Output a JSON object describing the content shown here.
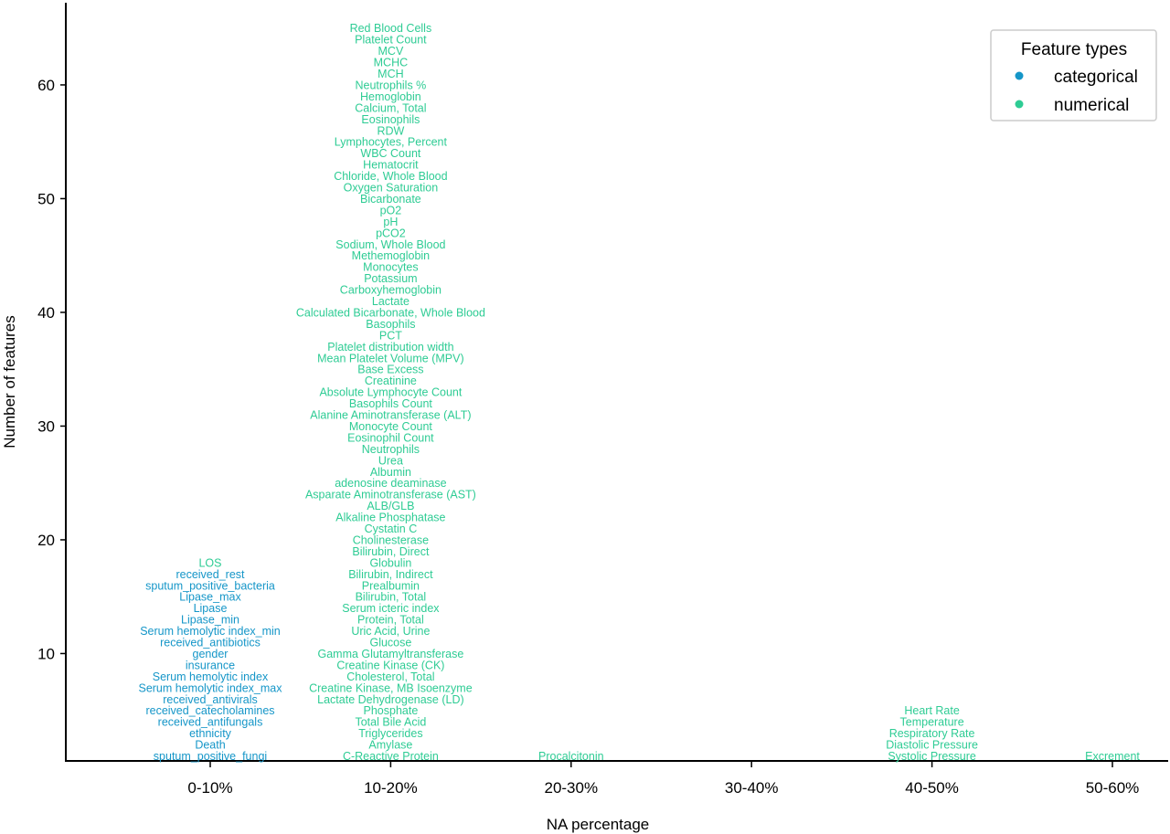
{
  "chart_data": {
    "type": "scatter",
    "xlabel": "NA percentage",
    "ylabel": "Number of features",
    "categories": [
      "0-10%",
      "10-20%",
      "20-30%",
      "30-40%",
      "40-50%",
      "50-60%"
    ],
    "yticks": [
      10,
      20,
      30,
      40,
      50,
      60
    ],
    "ylim": [
      0,
      67
    ],
    "grid": false,
    "legend": {
      "title": "Feature types",
      "position": "top-right",
      "entries": [
        {
          "name": "categorical",
          "color": "#1596c8"
        },
        {
          "name": "numerical",
          "color": "#2ecc94"
        }
      ]
    },
    "columns": [
      {
        "category": "0-10%",
        "features": [
          {
            "label": "sputum_positive_fungi",
            "type": "categorical"
          },
          {
            "label": "Death",
            "type": "categorical"
          },
          {
            "label": "ethnicity",
            "type": "categorical"
          },
          {
            "label": "received_antifungals",
            "type": "categorical"
          },
          {
            "label": "received_catecholamines",
            "type": "categorical"
          },
          {
            "label": "received_antivirals",
            "type": "categorical"
          },
          {
            "label": "Serum hemolytic index_max",
            "type": "categorical"
          },
          {
            "label": "Serum hemolytic index",
            "type": "categorical"
          },
          {
            "label": "insurance",
            "type": "categorical"
          },
          {
            "label": "gender",
            "type": "categorical"
          },
          {
            "label": "received_antibiotics",
            "type": "categorical"
          },
          {
            "label": "Serum hemolytic index_min",
            "type": "categorical"
          },
          {
            "label": "Lipase_min",
            "type": "categorical"
          },
          {
            "label": "Lipase",
            "type": "categorical"
          },
          {
            "label": "Lipase_max",
            "type": "categorical"
          },
          {
            "label": "sputum_positive_bacteria",
            "type": "categorical"
          },
          {
            "label": "received_rest",
            "type": "categorical"
          },
          {
            "label": "LOS",
            "type": "numerical"
          }
        ]
      },
      {
        "category": "10-20%",
        "features": [
          {
            "label": "C-Reactive Protein",
            "type": "numerical"
          },
          {
            "label": "Amylase",
            "type": "numerical"
          },
          {
            "label": "Triglycerides",
            "type": "numerical"
          },
          {
            "label": "Total Bile Acid",
            "type": "numerical"
          },
          {
            "label": "Phosphate",
            "type": "numerical"
          },
          {
            "label": "Lactate Dehydrogenase (LD)",
            "type": "numerical"
          },
          {
            "label": "Creatine Kinase, MB Isoenzyme",
            "type": "numerical"
          },
          {
            "label": "Cholesterol, Total",
            "type": "numerical"
          },
          {
            "label": "Creatine Kinase (CK)",
            "type": "numerical"
          },
          {
            "label": "Gamma Glutamyltransferase",
            "type": "numerical"
          },
          {
            "label": "Glucose",
            "type": "numerical"
          },
          {
            "label": "Uric Acid, Urine",
            "type": "numerical"
          },
          {
            "label": "Protein, Total",
            "type": "numerical"
          },
          {
            "label": "Serum  icteric index",
            "type": "numerical"
          },
          {
            "label": "Bilirubin, Total",
            "type": "numerical"
          },
          {
            "label": "Prealbumin",
            "type": "numerical"
          },
          {
            "label": "Bilirubin, Indirect",
            "type": "numerical"
          },
          {
            "label": "Globulin",
            "type": "numerical"
          },
          {
            "label": "Bilirubin, Direct",
            "type": "numerical"
          },
          {
            "label": "Cholinesterase",
            "type": "numerical"
          },
          {
            "label": "Cystatin C",
            "type": "numerical"
          },
          {
            "label": "Alkaline Phosphatase",
            "type": "numerical"
          },
          {
            "label": "ALB/GLB",
            "type": "numerical"
          },
          {
            "label": "Asparate Aminotransferase (AST)",
            "type": "numerical"
          },
          {
            "label": "adenosine deaminase",
            "type": "numerical"
          },
          {
            "label": "Albumin",
            "type": "numerical"
          },
          {
            "label": "Urea",
            "type": "numerical"
          },
          {
            "label": "Neutrophils",
            "type": "numerical"
          },
          {
            "label": "Eosinophil Count",
            "type": "numerical"
          },
          {
            "label": "Monocyte Count",
            "type": "numerical"
          },
          {
            "label": "Alanine Aminotransferase (ALT)",
            "type": "numerical"
          },
          {
            "label": "Basophils Count",
            "type": "numerical"
          },
          {
            "label": "Absolute Lymphocyte Count",
            "type": "numerical"
          },
          {
            "label": "Creatinine",
            "type": "numerical"
          },
          {
            "label": "Base Excess",
            "type": "numerical"
          },
          {
            "label": "Mean Platelet Volume (MPV)",
            "type": "numerical"
          },
          {
            "label": "Platelet distribution width",
            "type": "numerical"
          },
          {
            "label": "PCT",
            "type": "numerical"
          },
          {
            "label": "Basophils",
            "type": "numerical"
          },
          {
            "label": "Calculated Bicarbonate, Whole Blood",
            "type": "numerical"
          },
          {
            "label": "Lactate",
            "type": "numerical"
          },
          {
            "label": "Carboxyhemoglobin",
            "type": "numerical"
          },
          {
            "label": "Potassium",
            "type": "numerical"
          },
          {
            "label": "Monocytes",
            "type": "numerical"
          },
          {
            "label": "Methemoglobin",
            "type": "numerical"
          },
          {
            "label": "Sodium, Whole Blood",
            "type": "numerical"
          },
          {
            "label": "pCO2",
            "type": "numerical"
          },
          {
            "label": "pH",
            "type": "numerical"
          },
          {
            "label": "pO2",
            "type": "numerical"
          },
          {
            "label": "Bicarbonate",
            "type": "numerical"
          },
          {
            "label": "Oxygen Saturation",
            "type": "numerical"
          },
          {
            "label": "Chloride, Whole Blood",
            "type": "numerical"
          },
          {
            "label": "Hematocrit",
            "type": "numerical"
          },
          {
            "label": "WBC Count",
            "type": "numerical"
          },
          {
            "label": "Lymphocytes, Percent",
            "type": "numerical"
          },
          {
            "label": "RDW",
            "type": "numerical"
          },
          {
            "label": "Eosinophils",
            "type": "numerical"
          },
          {
            "label": "Calcium, Total",
            "type": "numerical"
          },
          {
            "label": "Hemoglobin",
            "type": "numerical"
          },
          {
            "label": "Neutrophils %",
            "type": "numerical"
          },
          {
            "label": "MCH",
            "type": "numerical"
          },
          {
            "label": "MCHC",
            "type": "numerical"
          },
          {
            "label": "MCV",
            "type": "numerical"
          },
          {
            "label": "Platelet Count",
            "type": "numerical"
          },
          {
            "label": "Red Blood Cells",
            "type": "numerical"
          }
        ]
      },
      {
        "category": "20-30%",
        "features": [
          {
            "label": "Procalcitonin",
            "type": "numerical"
          }
        ]
      },
      {
        "category": "30-40%",
        "features": []
      },
      {
        "category": "40-50%",
        "features": [
          {
            "label": "Systolic Pressure",
            "type": "numerical"
          },
          {
            "label": "Diastolic Pressure",
            "type": "numerical"
          },
          {
            "label": "Respiratory Rate",
            "type": "numerical"
          },
          {
            "label": "Temperature",
            "type": "numerical"
          },
          {
            "label": "Heart Rate",
            "type": "numerical"
          }
        ]
      },
      {
        "category": "50-60%",
        "features": [
          {
            "label": "Excrement",
            "type": "numerical"
          }
        ]
      }
    ]
  }
}
